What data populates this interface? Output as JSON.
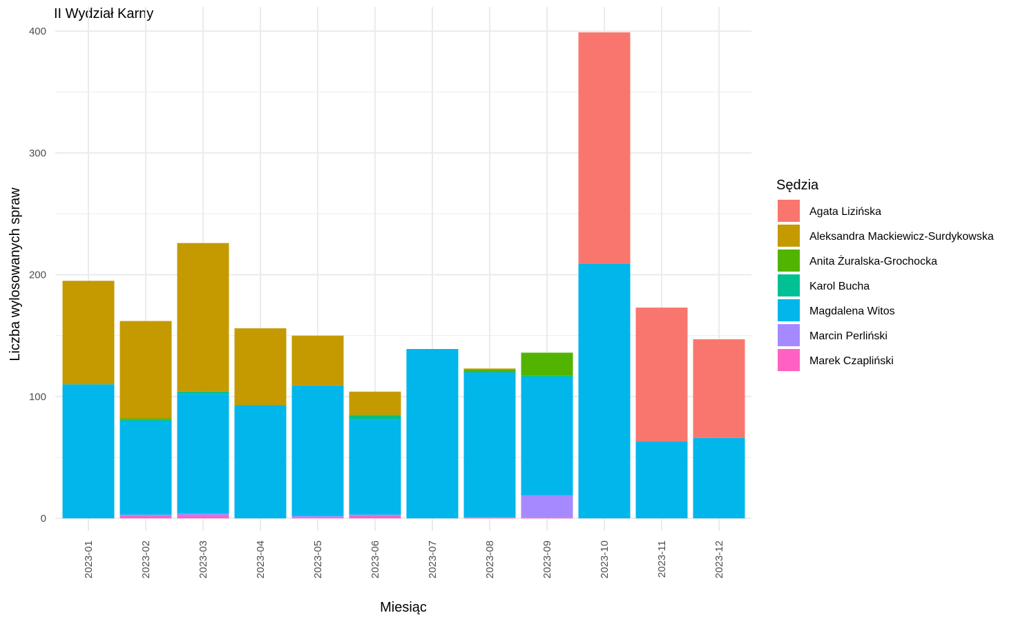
{
  "chart_data": {
    "type": "bar",
    "stacked": true,
    "title": "II Wydział Karny",
    "xlabel": "Miesiąc",
    "ylabel": "Liczba wylosowanych spraw",
    "ylim": [
      0,
      400
    ],
    "y_ticks": [
      0,
      100,
      200,
      300,
      400
    ],
    "grid": true,
    "legend_title": "Sędzia",
    "legend_position": "right",
    "categories": [
      "2023-01",
      "2023-02",
      "2023-03",
      "2023-04",
      "2023-05",
      "2023-06",
      "2023-07",
      "2023-08",
      "2023-09",
      "2023-10",
      "2023-11",
      "2023-12"
    ],
    "series": [
      {
        "name": "Marek Czapliński",
        "color": "#FF61C3",
        "values": [
          0,
          2,
          2,
          0,
          1,
          2,
          0,
          1,
          1,
          0,
          0,
          0
        ]
      },
      {
        "name": "Marcin Perliński",
        "color": "#A58AFF",
        "values": [
          0,
          1,
          2,
          0,
          1,
          1,
          0,
          0,
          18,
          0,
          0,
          0
        ]
      },
      {
        "name": "Magdalena Witos",
        "color": "#00B6EB",
        "values": [
          110,
          77,
          98,
          93,
          107,
          78,
          139,
          119,
          97,
          209,
          63,
          66
        ]
      },
      {
        "name": "Karol Bucha",
        "color": "#00C094",
        "values": [
          0,
          1,
          2,
          0,
          0,
          3,
          0,
          0,
          1,
          0,
          0,
          0
        ]
      },
      {
        "name": "Anita Żuralska-Grochocka",
        "color": "#53B400",
        "values": [
          0,
          1,
          0,
          0,
          0,
          1,
          0,
          2,
          19,
          0,
          0,
          0
        ]
      },
      {
        "name": "Aleksandra Mackiewicz-Surdykowska",
        "color": "#C49A00",
        "values": [
          85,
          80,
          122,
          63,
          41,
          19,
          0,
          1,
          0,
          0,
          0,
          0
        ]
      },
      {
        "name": "Agata Lizińska",
        "color": "#F8766D",
        "values": [
          0,
          0,
          0,
          0,
          0,
          0,
          0,
          0,
          0,
          190,
          110,
          81
        ]
      }
    ],
    "legend_order": [
      "Agata Lizińska",
      "Aleksandra Mackiewicz-Surdykowska",
      "Anita Żuralska-Grochocka",
      "Karol Bucha",
      "Magdalena Witos",
      "Marcin Perliński",
      "Marek Czapliński"
    ]
  }
}
